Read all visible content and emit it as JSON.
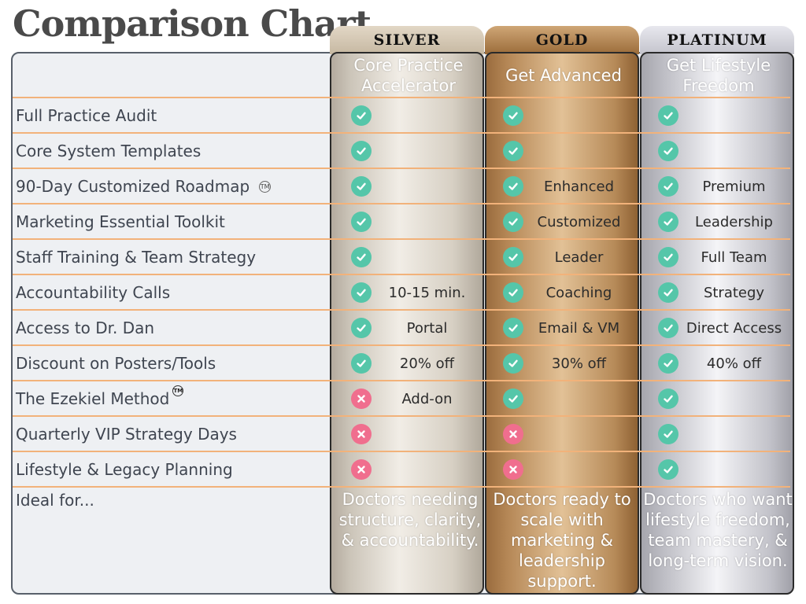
{
  "title": "Comparison Chart",
  "tiers": [
    {
      "label": "SILVER",
      "subtitle": "Core Practice Accelerator",
      "ideal": "Doctors needing structure, clarity, & accountability."
    },
    {
      "label": "GOLD",
      "subtitle": "Get Advanced",
      "ideal": "Doctors ready to scale with marketing & leadership support."
    },
    {
      "label": "PLATINUM",
      "subtitle": "Get Lifestyle Freedom",
      "ideal": "Doctors who want lifestyle freedom, team mastery, & long-term vision."
    }
  ],
  "ideal_label": "Ideal for...",
  "trademark_symbol": "TM",
  "features": [
    {
      "label": "Full Practice Audit",
      "cells": [
        {
          "mark": "check",
          "text": ""
        },
        {
          "mark": "check",
          "text": ""
        },
        {
          "mark": "check",
          "text": ""
        }
      ]
    },
    {
      "label": "Core System Templates",
      "cells": [
        {
          "mark": "check",
          "text": ""
        },
        {
          "mark": "check",
          "text": ""
        },
        {
          "mark": "check",
          "text": ""
        }
      ]
    },
    {
      "label": "90-Day Customized Roadmap",
      "cells": [
        {
          "mark": "check",
          "text": ""
        },
        {
          "mark": "check",
          "text": "Enhanced"
        },
        {
          "mark": "check",
          "text": "Premium"
        }
      ]
    },
    {
      "label": "Marketing Essential Toolkit",
      "cells": [
        {
          "mark": "check",
          "text": ""
        },
        {
          "mark": "check",
          "text": "Customized"
        },
        {
          "mark": "check",
          "text": "Leadership"
        }
      ]
    },
    {
      "label": "Staff Training & Team Strategy",
      "cells": [
        {
          "mark": "check",
          "text": ""
        },
        {
          "mark": "check",
          "text": "Leader"
        },
        {
          "mark": "check",
          "text": "Full Team"
        }
      ]
    },
    {
      "label": "Accountability Calls",
      "cells": [
        {
          "mark": "check",
          "text": "10-15 min."
        },
        {
          "mark": "check",
          "text": "Coaching"
        },
        {
          "mark": "check",
          "text": "Strategy"
        }
      ]
    },
    {
      "label": "Access to Dr. Dan",
      "cells": [
        {
          "mark": "check",
          "text": "Portal"
        },
        {
          "mark": "check",
          "text": "Email & VM"
        },
        {
          "mark": "check",
          "text": "Direct Access"
        }
      ]
    },
    {
      "label": "Discount on Posters/Tools",
      "cells": [
        {
          "mark": "check",
          "text": "20% off"
        },
        {
          "mark": "check",
          "text": "30% off"
        },
        {
          "mark": "check",
          "text": "40% off"
        }
      ]
    },
    {
      "label": "The Ezekiel Method",
      "cells": [
        {
          "mark": "cross",
          "text": "Add-on"
        },
        {
          "mark": "check",
          "text": ""
        },
        {
          "mark": "check",
          "text": ""
        }
      ]
    },
    {
      "label": "Quarterly VIP Strategy Days",
      "cells": [
        {
          "mark": "cross",
          "text": ""
        },
        {
          "mark": "cross",
          "text": ""
        },
        {
          "mark": "check",
          "text": ""
        }
      ]
    },
    {
      "label": "Lifestyle & Legacy Planning",
      "cells": [
        {
          "mark": "cross",
          "text": ""
        },
        {
          "mark": "cross",
          "text": ""
        },
        {
          "mark": "check",
          "text": ""
        }
      ]
    }
  ],
  "colors": {
    "check": "#55c6a9",
    "cross": "#f06e8e",
    "row_line": "#f2b27a"
  }
}
